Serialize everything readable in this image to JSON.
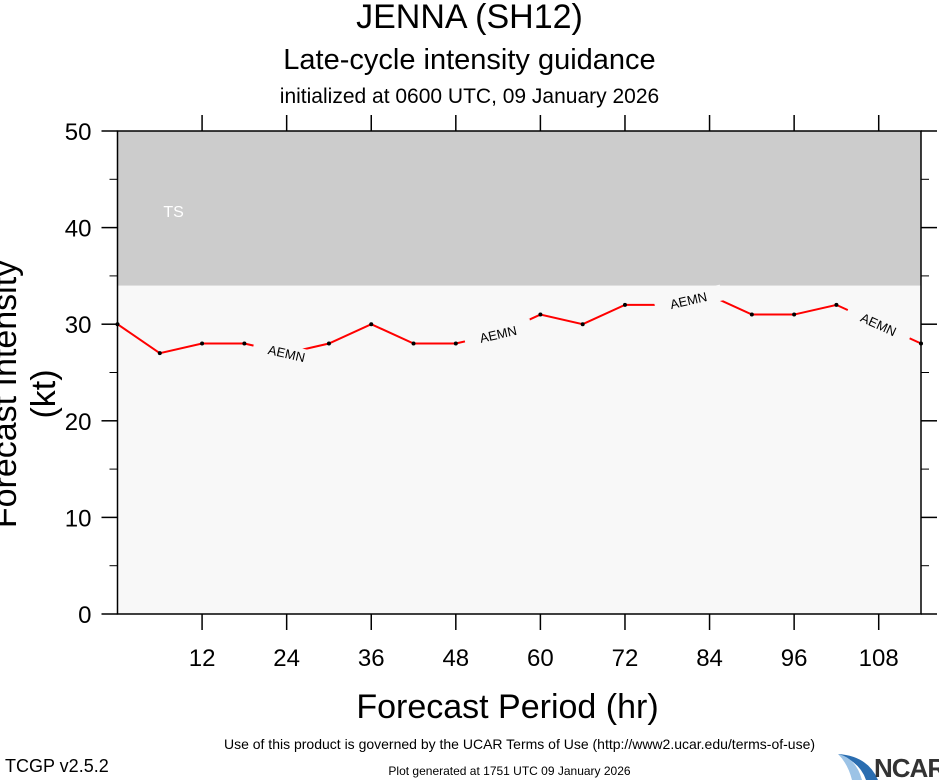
{
  "chart_data": {
    "type": "line",
    "title": "JENNA (SH12)",
    "subtitle": "Late-cycle intensity guidance",
    "subtitle2": "initialized at 0600 UTC, 09 January 2026",
    "xlabel": "Forecast Period (hr)",
    "ylabel": "Forecast Intensity (kt)",
    "xlim": [
      0,
      114
    ],
    "ylim": [
      0,
      50
    ],
    "xticks": [
      12,
      24,
      36,
      48,
      60,
      72,
      84,
      96,
      108
    ],
    "yticks": [
      0,
      10,
      20,
      30,
      40,
      50
    ],
    "grid": false,
    "bands": [
      {
        "label": "TS",
        "from": 34,
        "to": 50,
        "color": "#cccccc"
      }
    ],
    "background_color": "#f8f8f8",
    "series": [
      {
        "name": "AEMN",
        "color": "#ff0000",
        "x": [
          0,
          6,
          12,
          18,
          24,
          30,
          36,
          42,
          48,
          54,
          60,
          66,
          72,
          78,
          84,
          90,
          96,
          102,
          108,
          114
        ],
        "y": [
          30,
          27,
          28,
          28,
          27,
          28,
          30,
          28,
          28,
          29,
          31,
          30,
          32,
          32,
          33,
          31,
          31,
          32,
          30,
          28
        ],
        "label_at_x": [
          24,
          54,
          81,
          108
        ]
      }
    ]
  },
  "footer": {
    "terms": "Use of this product is governed by the UCAR Terms of Use (http://www2.ucar.edu/terms-of-use)",
    "version": "TCGP v2.5.2",
    "generated": "Plot generated at 1751 UTC   09 January 2026",
    "logo": "NCAR"
  }
}
